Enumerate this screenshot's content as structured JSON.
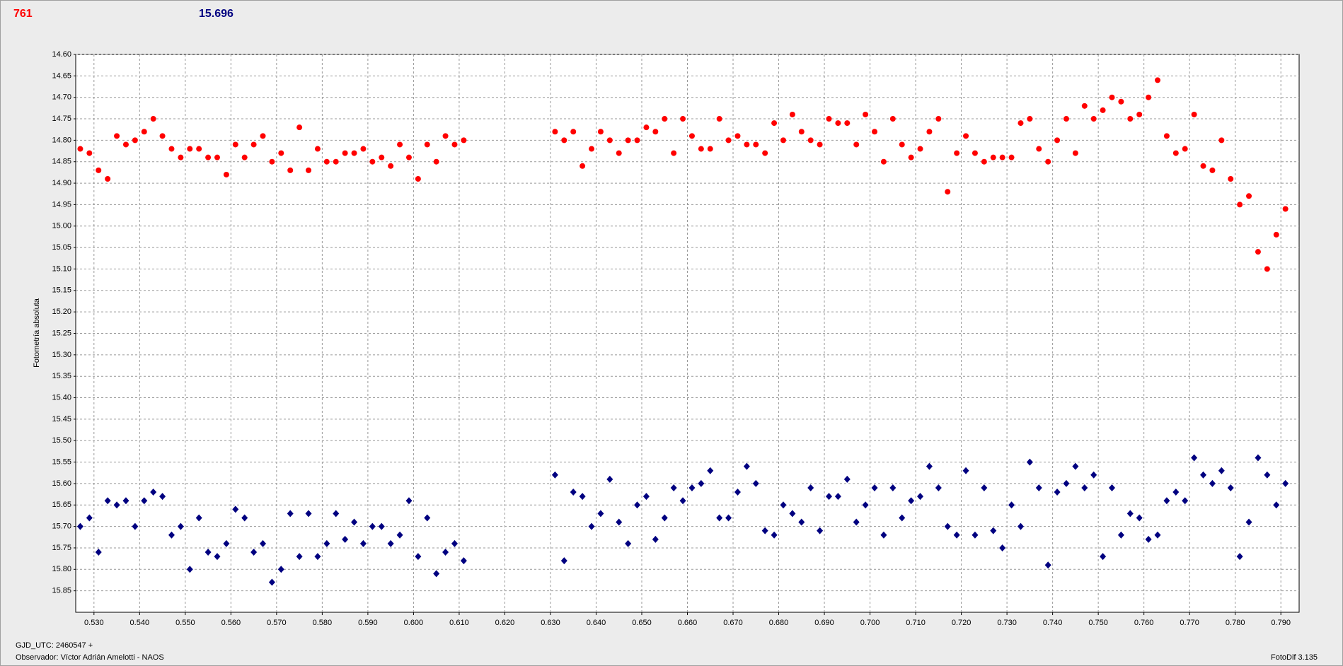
{
  "chart_data": {
    "type": "scatter",
    "annotations": [
      {
        "text": "761",
        "color": "#ff0000"
      },
      {
        "text": "15.696",
        "color": "#000080"
      }
    ],
    "y_label": "Fotometría absoluta",
    "footer_left": [
      "GJD_UTC: 2460547 +",
      "Observador: Víctor Adrián Amelotti - NAOS"
    ],
    "footer_right": "FotoDif 3.135",
    "xlim": [
      0.526,
      0.794
    ],
    "ylim": [
      14.6,
      15.9
    ],
    "y_inverted": true,
    "grid": true,
    "xticks": [
      {
        "value": 0.53,
        "label": "0.530"
      },
      {
        "value": 0.54,
        "label": "0.540"
      },
      {
        "value": 0.55,
        "label": "0.550"
      },
      {
        "value": 0.56,
        "label": "0.560"
      },
      {
        "value": 0.57,
        "label": "0.570"
      },
      {
        "value": 0.58,
        "label": "0.580"
      },
      {
        "value": 0.59,
        "label": "0.590"
      },
      {
        "value": 0.6,
        "label": "0.600"
      },
      {
        "value": 0.61,
        "label": "0.610"
      },
      {
        "value": 0.62,
        "label": "0.620"
      },
      {
        "value": 0.63,
        "label": "0.630"
      },
      {
        "value": 0.64,
        "label": "0.640"
      },
      {
        "value": 0.65,
        "label": "0.650"
      },
      {
        "value": 0.66,
        "label": "0.660"
      },
      {
        "value": 0.67,
        "label": "0.670"
      },
      {
        "value": 0.68,
        "label": "0.680"
      },
      {
        "value": 0.69,
        "label": "0.690"
      },
      {
        "value": 0.7,
        "label": "0.700"
      },
      {
        "value": 0.71,
        "label": "0.710"
      },
      {
        "value": 0.72,
        "label": "0.720"
      },
      {
        "value": 0.73,
        "label": "0.730"
      },
      {
        "value": 0.74,
        "label": "0.740"
      },
      {
        "value": 0.75,
        "label": "0.750"
      },
      {
        "value": 0.76,
        "label": "0.760"
      },
      {
        "value": 0.77,
        "label": "0.770"
      },
      {
        "value": 0.78,
        "label": "0.780"
      },
      {
        "value": 0.79,
        "label": "0.790"
      }
    ],
    "yticks": [
      {
        "value": 14.6,
        "label": "14.60"
      },
      {
        "value": 14.65,
        "label": "14.65"
      },
      {
        "value": 14.7,
        "label": "14.70"
      },
      {
        "value": 14.75,
        "label": "14.75"
      },
      {
        "value": 14.8,
        "label": "14.80"
      },
      {
        "value": 14.85,
        "label": "14.85"
      },
      {
        "value": 14.9,
        "label": "14.90"
      },
      {
        "value": 14.95,
        "label": "14.95"
      },
      {
        "value": 15.0,
        "label": "15.00"
      },
      {
        "value": 15.05,
        "label": "15.05"
      },
      {
        "value": 15.1,
        "label": "15.10"
      },
      {
        "value": 15.15,
        "label": "15.15"
      },
      {
        "value": 15.2,
        "label": "15.20"
      },
      {
        "value": 15.25,
        "label": "15.25"
      },
      {
        "value": 15.3,
        "label": "15.30"
      },
      {
        "value": 15.35,
        "label": "15.35"
      },
      {
        "value": 15.4,
        "label": "15.40"
      },
      {
        "value": 15.45,
        "label": "15.45"
      },
      {
        "value": 15.5,
        "label": "15.50"
      },
      {
        "value": 15.55,
        "label": "15.55"
      },
      {
        "value": 15.6,
        "label": "15.60"
      },
      {
        "value": 15.65,
        "label": "15.65"
      },
      {
        "value": 15.7,
        "label": "15.70"
      },
      {
        "value": 15.75,
        "label": "15.75"
      },
      {
        "value": 15.8,
        "label": "15.80"
      },
      {
        "value": 15.85,
        "label": "15.85"
      }
    ],
    "x": [
      0.527,
      0.529,
      0.531,
      0.533,
      0.535,
      0.537,
      0.539,
      0.541,
      0.543,
      0.545,
      0.547,
      0.549,
      0.551,
      0.553,
      0.555,
      0.557,
      0.559,
      0.561,
      0.563,
      0.565,
      0.567,
      0.569,
      0.571,
      0.573,
      0.575,
      0.577,
      0.579,
      0.581,
      0.583,
      0.585,
      0.587,
      0.589,
      0.591,
      0.593,
      0.595,
      0.597,
      0.599,
      0.601,
      0.603,
      0.605,
      0.607,
      0.609,
      0.611,
      0.631,
      0.633,
      0.635,
      0.637,
      0.639,
      0.641,
      0.643,
      0.645,
      0.647,
      0.649,
      0.651,
      0.653,
      0.655,
      0.657,
      0.659,
      0.661,
      0.663,
      0.665,
      0.667,
      0.669,
      0.671,
      0.673,
      0.675,
      0.677,
      0.679,
      0.681,
      0.683,
      0.685,
      0.687,
      0.689,
      0.691,
      0.693,
      0.695,
      0.697,
      0.699,
      0.701,
      0.703,
      0.705,
      0.707,
      0.709,
      0.711,
      0.713,
      0.715,
      0.717,
      0.719,
      0.721,
      0.723,
      0.725,
      0.727,
      0.729,
      0.731,
      0.733,
      0.735,
      0.737,
      0.739,
      0.741,
      0.743,
      0.745,
      0.747,
      0.749,
      0.751,
      0.753,
      0.755,
      0.757,
      0.759,
      0.761,
      0.763,
      0.765,
      0.767,
      0.769,
      0.771,
      0.773,
      0.775,
      0.777,
      0.779,
      0.781,
      0.783,
      0.785,
      0.787,
      0.789,
      0.791
    ],
    "series": [
      {
        "color": "#ff0000",
        "marker": "circle",
        "values": [
          14.82,
          14.83,
          14.87,
          14.89,
          14.79,
          14.81,
          14.8,
          14.78,
          14.75,
          14.79,
          14.82,
          14.84,
          14.82,
          14.82,
          14.84,
          14.84,
          14.88,
          14.81,
          14.84,
          14.81,
          14.79,
          14.85,
          14.83,
          14.87,
          14.77,
          14.87,
          14.82,
          14.85,
          14.85,
          14.83,
          14.83,
          14.82,
          14.85,
          14.84,
          14.86,
          14.81,
          14.84,
          14.89,
          14.81,
          14.85,
          14.79,
          14.81,
          14.8,
          14.78,
          14.8,
          14.78,
          14.86,
          14.82,
          14.78,
          14.8,
          14.83,
          14.8,
          14.8,
          14.77,
          14.78,
          14.75,
          14.83,
          14.75,
          14.79,
          14.82,
          14.82,
          14.75,
          14.8,
          14.79,
          14.81,
          14.81,
          14.83,
          14.76,
          14.8,
          14.74,
          14.78,
          14.8,
          14.81,
          14.75,
          14.76,
          14.76,
          14.81,
          14.74,
          14.78,
          14.85,
          14.75,
          14.81,
          14.84,
          14.82,
          14.78,
          14.75,
          14.92,
          14.83,
          14.79,
          14.83,
          14.85,
          14.84,
          14.84,
          14.84,
          14.76,
          14.75,
          14.82,
          14.85,
          14.8,
          14.75,
          14.83,
          14.72,
          14.75,
          14.73,
          14.7,
          14.71,
          14.75,
          14.74,
          14.7,
          14.66,
          14.79,
          14.83,
          14.82,
          14.74,
          14.86,
          14.87,
          14.8,
          14.89,
          14.95,
          14.93,
          15.06,
          15.1,
          15.02,
          14.96
        ]
      },
      {
        "color": "#000080",
        "marker": "diamond",
        "values": [
          15.7,
          15.68,
          15.76,
          15.64,
          15.65,
          15.64,
          15.7,
          15.64,
          15.62,
          15.63,
          15.72,
          15.7,
          15.8,
          15.68,
          15.76,
          15.77,
          15.74,
          15.66,
          15.68,
          15.76,
          15.74,
          15.83,
          15.8,
          15.67,
          15.77,
          15.67,
          15.77,
          15.74,
          15.67,
          15.73,
          15.69,
          15.74,
          15.7,
          15.7,
          15.74,
          15.72,
          15.64,
          15.77,
          15.68,
          15.81,
          15.76,
          15.74,
          15.78,
          15.58,
          15.78,
          15.62,
          15.63,
          15.7,
          15.67,
          15.59,
          15.69,
          15.74,
          15.65,
          15.63,
          15.73,
          15.68,
          15.61,
          15.64,
          15.61,
          15.6,
          15.57,
          15.68,
          15.68,
          15.62,
          15.56,
          15.6,
          15.71,
          15.72,
          15.65,
          15.67,
          15.69,
          15.61,
          15.71,
          15.63,
          15.63,
          15.59,
          15.69,
          15.65,
          15.61,
          15.72,
          15.61,
          15.68,
          15.64,
          15.63,
          15.56,
          15.61,
          15.7,
          15.72,
          15.57,
          15.72,
          15.61,
          15.71,
          15.75,
          15.65,
          15.7,
          15.55,
          15.61,
          15.79,
          15.62,
          15.6,
          15.56,
          15.61,
          15.58,
          15.77,
          15.61,
          15.72,
          15.67,
          15.68,
          15.73,
          15.72,
          15.64,
          15.62,
          15.64,
          15.54,
          15.58,
          15.6,
          15.57,
          15.61,
          15.77,
          15.69,
          15.54,
          15.58,
          15.65,
          15.6
        ]
      }
    ]
  }
}
